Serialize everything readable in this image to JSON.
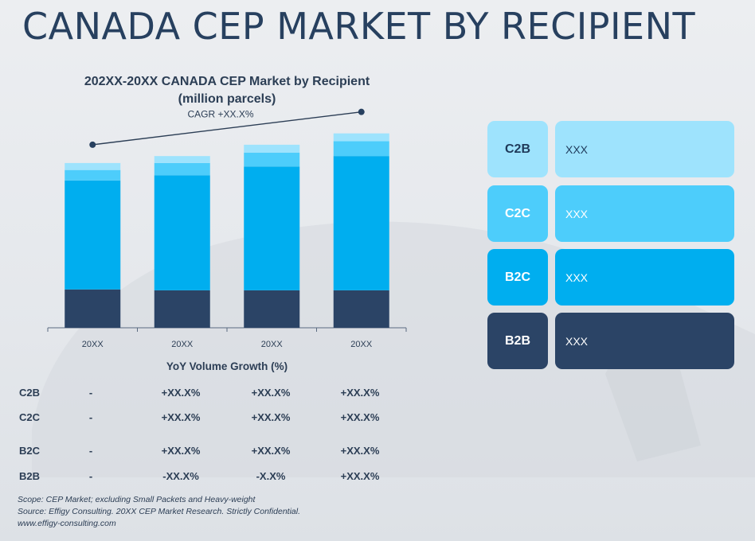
{
  "page": {
    "title": "CANADA CEP MARKET BY RECIPIENT"
  },
  "chart_data": {
    "type": "bar",
    "stacked": true,
    "title_lines": [
      "202XX-20XX CANADA CEP Market by Recipient",
      "(million parcels)"
    ],
    "categories": [
      "20XX",
      "20XX",
      "20XX",
      "20XX"
    ],
    "series": [
      {
        "name": "B2B",
        "values": [
          44,
          43,
          43,
          43
        ],
        "color": "#2b4466"
      },
      {
        "name": "B2C",
        "values": [
          125,
          132,
          142,
          154
        ],
        "color": "#00aeef"
      },
      {
        "name": "C2C",
        "values": [
          12,
          14,
          16,
          17
        ],
        "color": "#4dcdfb"
      },
      {
        "name": "C2B",
        "values": [
          8,
          8,
          9,
          9
        ],
        "color": "#9ee3fd"
      }
    ],
    "ylim": [
      0,
      230
    ],
    "cagr_label": "CAGR +XX.X%",
    "grid": false,
    "legend": "right"
  },
  "yoy": {
    "title": "YoY Volume Growth (%)",
    "rows": [
      {
        "label": "C2B",
        "values": [
          "-",
          "+XX.X%",
          "+XX.X%",
          "+XX.X%"
        ]
      },
      {
        "label": "C2C",
        "values": [
          "-",
          "+XX.X%",
          "+XX.X%",
          "+XX.X%"
        ]
      },
      {
        "label": "B2C",
        "values": [
          "-",
          "+XX.X%",
          "+XX.X%",
          "+XX.X%"
        ]
      },
      {
        "label": "B2B",
        "values": [
          "-",
          "-XX.X%",
          "-X.X%",
          "+XX.X%"
        ]
      }
    ]
  },
  "legend": {
    "items": [
      {
        "key": "C2B",
        "value": "XXX",
        "key_color": "#9ee3fd",
        "value_color": "#9ee3fd",
        "text_color": "#1f3a5a"
      },
      {
        "key": "C2C",
        "value": "XXX",
        "key_color": "#4dcdfb",
        "value_color": "#4dcdfb",
        "text_color": "#ffffff"
      },
      {
        "key": "B2C",
        "value": "XXX",
        "key_color": "#00aeef",
        "value_color": "#00aeef",
        "text_color": "#ffffff"
      },
      {
        "key": "B2B",
        "value": "XXX",
        "key_color": "#2b4466",
        "value_color": "#2b4466",
        "text_color": "#ffffff"
      }
    ]
  },
  "footer": {
    "scope": "Scope: CEP Market; excluding Small Packets and Heavy-weight",
    "source": "Source: Effigy Consulting. 20XX CEP Market Research. Strictly Confidential.",
    "website": "www.effigy-consulting.com"
  }
}
